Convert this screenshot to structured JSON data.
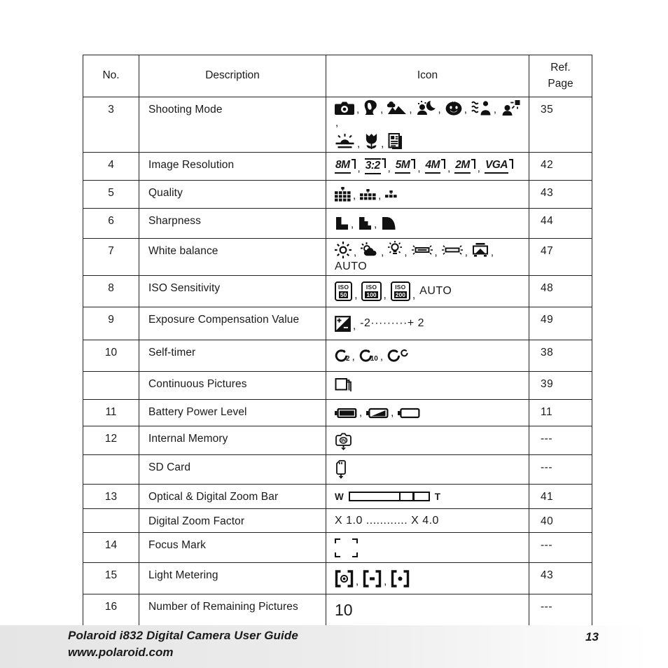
{
  "header": {
    "no": "No.",
    "description": "Description",
    "icon": "Icon",
    "ref1": "Ref.",
    "ref2": "Page"
  },
  "rows": [
    {
      "no": "3",
      "description": "Shooting Mode",
      "ref": "35",
      "segments": [
        {
          "t": "i",
          "n": "camera-icon"
        },
        {
          "t": "s",
          "v": ","
        },
        {
          "t": "i",
          "n": "portrait-icon"
        },
        {
          "t": "s",
          "v": ","
        },
        {
          "t": "i",
          "n": "landscape-icon"
        },
        {
          "t": "s",
          "v": ","
        },
        {
          "t": "i",
          "n": "night-portrait-icon"
        },
        {
          "t": "s",
          "v": ","
        },
        {
          "t": "i",
          "n": "kids-icon"
        },
        {
          "t": "s",
          "v": ","
        },
        {
          "t": "i",
          "n": "sports-icon"
        },
        {
          "t": "s",
          "v": ","
        },
        {
          "t": "i",
          "n": "backlight-icon"
        },
        {
          "t": "s",
          "v": ","
        },
        {
          "t": "br"
        },
        {
          "t": "i",
          "n": "sunset-icon"
        },
        {
          "t": "s",
          "v": ","
        },
        {
          "t": "i",
          "n": "macro-flower-icon"
        },
        {
          "t": "s",
          "v": ","
        },
        {
          "t": "i",
          "n": "text-document-icon"
        }
      ]
    },
    {
      "no": "4",
      "description": "Image Resolution",
      "ref": "42",
      "segments": [
        {
          "t": "res",
          "v": "8M"
        },
        {
          "t": "s",
          "v": ","
        },
        {
          "t": "res",
          "v": "3:2"
        },
        {
          "t": "s",
          "v": ","
        },
        {
          "t": "res",
          "v": "5M"
        },
        {
          "t": "s",
          "v": ","
        },
        {
          "t": "res",
          "v": "4M"
        },
        {
          "t": "s",
          "v": ","
        },
        {
          "t": "res",
          "v": "2M"
        },
        {
          "t": "s",
          "v": ","
        },
        {
          "t": "res",
          "v": "VGA"
        }
      ]
    },
    {
      "no": "5",
      "description": "Quality",
      "ref": "43",
      "segments": [
        {
          "t": "i",
          "n": "quality-superfine-icon"
        },
        {
          "t": "s",
          "v": ","
        },
        {
          "t": "i",
          "n": "quality-fine-icon"
        },
        {
          "t": "s",
          "v": ","
        },
        {
          "t": "i",
          "n": "quality-normal-icon"
        }
      ]
    },
    {
      "no": "6",
      "description": "Sharpness",
      "ref": "44",
      "segments": [
        {
          "t": "i",
          "n": "sharpness-hard-icon"
        },
        {
          "t": "s",
          "v": ","
        },
        {
          "t": "i",
          "n": "sharpness-normal-icon"
        },
        {
          "t": "s",
          "v": ","
        },
        {
          "t": "i",
          "n": "sharpness-soft-icon"
        }
      ]
    },
    {
      "no": "7",
      "description": "White balance",
      "ref": "47",
      "segments": [
        {
          "t": "i",
          "n": "wb-daylight-icon"
        },
        {
          "t": "s",
          "v": ","
        },
        {
          "t": "i",
          "n": "wb-cloudy-icon"
        },
        {
          "t": "s",
          "v": ","
        },
        {
          "t": "i",
          "n": "wb-tungsten-icon"
        },
        {
          "t": "s",
          "v": ","
        },
        {
          "t": "i",
          "n": "wb-fluorescent-h-icon"
        },
        {
          "t": "s",
          "v": ","
        },
        {
          "t": "i",
          "n": "wb-fluorescent-l-icon"
        },
        {
          "t": "s",
          "v": ","
        },
        {
          "t": "i",
          "n": "wb-custom-icon"
        },
        {
          "t": "s",
          "v": ","
        },
        {
          "t": "txt",
          "v": "AUTO"
        }
      ]
    },
    {
      "no": "8",
      "description": "ISO Sensitivity",
      "ref": "48",
      "segments": [
        {
          "t": "iso",
          "top": "ISO",
          "v": "50"
        },
        {
          "t": "s",
          "v": ","
        },
        {
          "t": "iso",
          "top": "ISO",
          "v": "100"
        },
        {
          "t": "s",
          "v": ","
        },
        {
          "t": "iso",
          "top": "ISO",
          "v": "200"
        },
        {
          "t": "s",
          "v": ","
        },
        {
          "t": "txt",
          "v": "AUTO"
        }
      ]
    },
    {
      "no": "9",
      "description": "Exposure Compensation Value",
      "ref": "49",
      "segments": [
        {
          "t": "i",
          "n": "exposure-compensation-icon"
        },
        {
          "t": "s",
          "v": ","
        },
        {
          "t": "txt",
          "v": "-2·········+ 2"
        }
      ]
    },
    {
      "no": "10",
      "description": "Self-timer",
      "ref": "38",
      "segments": [
        {
          "t": "timer",
          "v": "2"
        },
        {
          "t": "s",
          "v": ","
        },
        {
          "t": "timer",
          "v": "10"
        },
        {
          "t": "s",
          "v": ","
        },
        {
          "t": "i",
          "n": "double-timer-icon"
        }
      ]
    },
    {
      "no": "",
      "description": "Continuous Pictures",
      "ref": "39",
      "segments": [
        {
          "t": "i",
          "n": "continuous-pictures-icon"
        }
      ]
    },
    {
      "no": "11",
      "description": "Battery Power Level",
      "ref": "11",
      "segments": [
        {
          "t": "i",
          "n": "battery-full-icon"
        },
        {
          "t": "s",
          "v": ","
        },
        {
          "t": "i",
          "n": "battery-half-icon"
        },
        {
          "t": "s",
          "v": ","
        },
        {
          "t": "i",
          "n": "battery-empty-icon"
        }
      ]
    },
    {
      "no": "12",
      "description": "Internal Memory",
      "ref": "---",
      "segments": [
        {
          "t": "i",
          "n": "internal-memory-icon"
        }
      ]
    },
    {
      "no": "",
      "description": "SD Card",
      "ref": "---",
      "segments": [
        {
          "t": "i",
          "n": "sd-card-icon"
        }
      ]
    },
    {
      "no": "13",
      "description": "Optical & Digital Zoom Bar",
      "ref": "41",
      "segments": [
        {
          "t": "zoombar",
          "l": "W",
          "r": "T"
        }
      ]
    },
    {
      "no": "",
      "description": "Digital Zoom Factor",
      "ref": "40",
      "segments": [
        {
          "t": "txt",
          "v": "X 1.0 ............ X 4.0"
        }
      ]
    },
    {
      "no": "14",
      "description": "Focus Mark",
      "ref": "---",
      "segments": [
        {
          "t": "i",
          "n": "focus-mark-icon"
        }
      ]
    },
    {
      "no": "15",
      "description": "Light Metering",
      "ref": "43",
      "segments": [
        {
          "t": "i",
          "n": "metering-matrix-icon"
        },
        {
          "t": "s",
          "v": ","
        },
        {
          "t": "i",
          "n": "metering-center-icon"
        },
        {
          "t": "s",
          "v": ","
        },
        {
          "t": "i",
          "n": "metering-spot-icon"
        }
      ]
    },
    {
      "no": "16",
      "description": "Number of Remaining Pictures",
      "ref": "---",
      "segments": [
        {
          "t": "big",
          "v": "10"
        }
      ]
    }
  ],
  "footer": {
    "line1": "Polaroid i832 Digital Camera User Guide",
    "line2": "www.polaroid.com",
    "page": "13"
  }
}
